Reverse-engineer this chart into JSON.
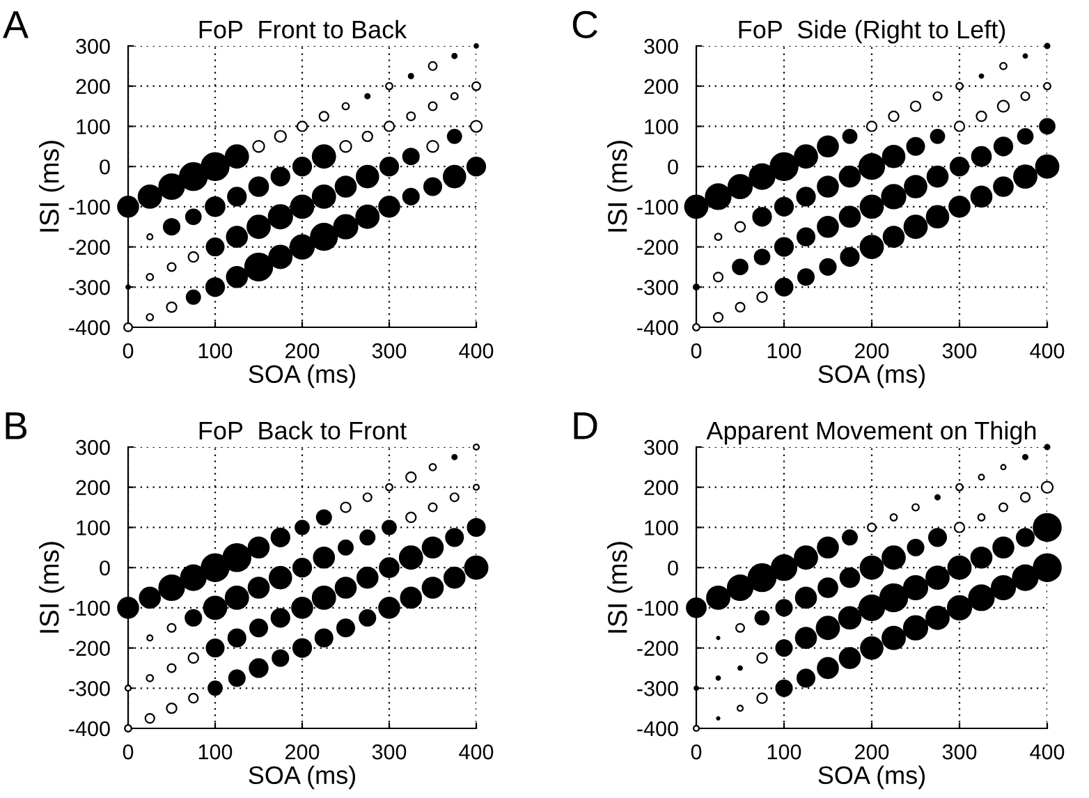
{
  "chart_data": [
    {
      "type": "bubble",
      "title": "FoP  Front to Back",
      "xlabel": "SOA (ms)",
      "ylabel": "ISI (ms)",
      "annotations": [
        "A"
      ],
      "xlim": [
        0,
        400
      ],
      "ylim": [
        -400,
        300
      ],
      "xticks": [
        0,
        100,
        200,
        300,
        400
      ],
      "yticks": [
        -400,
        -300,
        -200,
        -100,
        0,
        100,
        200,
        300
      ],
      "grid": true,
      "series": [
        {
          "x": [
            0,
            25,
            50,
            75,
            100,
            125,
            150,
            175,
            200,
            225,
            250,
            275,
            300,
            325,
            350,
            375,
            400
          ],
          "values": [
            -100,
            -75,
            -50,
            -25,
            0,
            25,
            50,
            75,
            100,
            125,
            150,
            175,
            200,
            225,
            250,
            275,
            300
          ],
          "sizes": [
            0.56,
            0.69,
            0.84,
            1,
            1,
            0.69,
            0.17,
            0.17,
            0.13,
            0.11,
            0.06,
            0.03,
            0.06,
            0.03,
            0.09,
            0.03,
            0.02
          ],
          "colors": [
            "#000000",
            "#000000",
            "#000000",
            "#000000",
            "#000000",
            "#000000",
            "#ffffff",
            "#ffffff",
            "#ffffff",
            "#ffffff",
            "#ffffff",
            "#000000",
            "#ffffff",
            "#000000",
            "#ffffff",
            "#000000",
            "#000000"
          ]
        },
        {
          "x": [
            25,
            50,
            75,
            100,
            125,
            150,
            175,
            200,
            225,
            250,
            275,
            300,
            325,
            350,
            375,
            400
          ],
          "values": [
            -175,
            -150,
            -125,
            -100,
            -75,
            -50,
            -25,
            0,
            25,
            50,
            75,
            100,
            125,
            150,
            175,
            200
          ],
          "sizes": [
            0.04,
            0.34,
            0.3,
            0.49,
            0.44,
            0.49,
            0.44,
            0.44,
            0.69,
            0.17,
            0.13,
            0.13,
            0.09,
            0.09,
            0.06,
            0.09
          ],
          "colors": [
            "#ffffff",
            "#000000",
            "#000000",
            "#000000",
            "#000000",
            "#000000",
            "#000000",
            "#000000",
            "#000000",
            "#ffffff",
            "#ffffff",
            "#ffffff",
            "#ffffff",
            "#ffffff",
            "#ffffff",
            "#ffffff"
          ]
        },
        {
          "x": [
            0,
            25,
            50,
            75,
            100,
            125,
            150,
            175,
            200,
            225,
            250,
            275,
            300,
            325,
            350,
            375,
            400
          ],
          "values": [
            -300,
            -275,
            -250,
            -225,
            -200,
            -175,
            -150,
            -125,
            -100,
            -75,
            -50,
            -25,
            0,
            25,
            50,
            75,
            100
          ],
          "sizes": [
            0.02,
            0.06,
            0.09,
            0.13,
            0.4,
            0.56,
            0.69,
            0.75,
            0.69,
            0.69,
            0.56,
            0.64,
            0.44,
            0.34,
            0.17,
            0.25,
            0.17
          ],
          "colors": [
            "#000000",
            "#ffffff",
            "#ffffff",
            "#ffffff",
            "#000000",
            "#000000",
            "#000000",
            "#000000",
            "#000000",
            "#000000",
            "#000000",
            "#000000",
            "#000000",
            "#000000",
            "#ffffff",
            "#000000",
            "#ffffff"
          ]
        },
        {
          "x": [
            0,
            25,
            50,
            75,
            100,
            125,
            150,
            175,
            200,
            225,
            250,
            275,
            300,
            325,
            350,
            375,
            400
          ],
          "values": [
            -400,
            -375,
            -350,
            -325,
            -300,
            -275,
            -250,
            -225,
            -200,
            -175,
            -150,
            -125,
            -100,
            -75,
            -50,
            -25,
            0
          ],
          "sizes": [
            0.09,
            0.06,
            0.13,
            0.25,
            0.44,
            0.56,
            1,
            0.69,
            0.75,
            0.93,
            0.75,
            0.69,
            0.56,
            0.34,
            0.4,
            0.64,
            0.44
          ],
          "colors": [
            "#ffffff",
            "#ffffff",
            "#ffffff",
            "#000000",
            "#000000",
            "#000000",
            "#000000",
            "#000000",
            "#000000",
            "#000000",
            "#000000",
            "#000000",
            "#000000",
            "#000000",
            "#000000",
            "#000000",
            "#000000"
          ]
        }
      ]
    },
    {
      "type": "bubble",
      "title": "FoP  Side (Right to Left)",
      "xlabel": "SOA (ms)",
      "ylabel": "ISI (ms)",
      "annotations": [
        "C"
      ],
      "xlim": [
        0,
        400
      ],
      "ylim": [
        -400,
        300
      ],
      "xticks": [
        0,
        100,
        200,
        300,
        400
      ],
      "yticks": [
        -400,
        -300,
        -200,
        -100,
        0,
        100,
        200,
        300
      ],
      "grid": true,
      "series": [
        {
          "x": [
            0,
            25,
            50,
            75,
            100,
            125,
            150,
            175,
            200,
            225,
            250,
            275,
            300,
            325,
            350,
            375,
            400
          ],
          "values": [
            -100,
            -75,
            -50,
            -25,
            0,
            25,
            50,
            75,
            100,
            125,
            150,
            175,
            200,
            225,
            250,
            275,
            300
          ],
          "sizes": [
            0.69,
            0.84,
            0.75,
            0.84,
            1,
            0.69,
            0.56,
            0.25,
            0.13,
            0.13,
            0.13,
            0.09,
            0.06,
            0.02,
            0.06,
            0.02,
            0.03
          ],
          "colors": [
            "#000000",
            "#000000",
            "#000000",
            "#000000",
            "#000000",
            "#000000",
            "#000000",
            "#000000",
            "#ffffff",
            "#ffffff",
            "#ffffff",
            "#ffffff",
            "#ffffff",
            "#000000",
            "#ffffff",
            "#000000",
            "#000000"
          ]
        },
        {
          "x": [
            25,
            50,
            75,
            100,
            125,
            150,
            175,
            200,
            225,
            250,
            275,
            300,
            325,
            350,
            375,
            400
          ],
          "values": [
            -175,
            -150,
            -125,
            -100,
            -75,
            -50,
            -25,
            0,
            25,
            50,
            75,
            100,
            125,
            150,
            175,
            200
          ],
          "sizes": [
            0.06,
            0.13,
            0.44,
            0.44,
            0.44,
            0.56,
            0.56,
            0.84,
            0.64,
            0.4,
            0.25,
            0.13,
            0.13,
            0.17,
            0.09,
            0.06
          ],
          "colors": [
            "#ffffff",
            "#ffffff",
            "#000000",
            "#000000",
            "#000000",
            "#000000",
            "#000000",
            "#000000",
            "#000000",
            "#000000",
            "#000000",
            "#ffffff",
            "#ffffff",
            "#ffffff",
            "#ffffff",
            "#ffffff"
          ]
        },
        {
          "x": [
            0,
            25,
            50,
            75,
            100,
            125,
            150,
            175,
            200,
            225,
            250,
            275,
            300,
            325,
            350,
            375,
            400
          ],
          "values": [
            -300,
            -275,
            -250,
            -225,
            -200,
            -175,
            -150,
            -125,
            -100,
            -75,
            -50,
            -25,
            0,
            25,
            50,
            75,
            100
          ],
          "sizes": [
            0.04,
            0.11,
            0.3,
            0.3,
            0.44,
            0.4,
            0.56,
            0.56,
            0.69,
            0.75,
            0.64,
            0.56,
            0.44,
            0.49,
            0.44,
            0.3,
            0.3
          ],
          "colors": [
            "#000000",
            "#ffffff",
            "#000000",
            "#000000",
            "#000000",
            "#000000",
            "#000000",
            "#000000",
            "#000000",
            "#000000",
            "#000000",
            "#000000",
            "#000000",
            "#000000",
            "#000000",
            "#000000",
            "#000000"
          ]
        },
        {
          "x": [
            0,
            25,
            50,
            75,
            100,
            125,
            150,
            175,
            200,
            225,
            250,
            275,
            300,
            325,
            350,
            375,
            400
          ],
          "values": [
            -400,
            -375,
            -350,
            -325,
            -300,
            -275,
            -250,
            -225,
            -200,
            -175,
            -150,
            -125,
            -100,
            -75,
            -50,
            -25,
            0
          ],
          "sizes": [
            0.06,
            0.11,
            0.11,
            0.13,
            0.4,
            0.34,
            0.34,
            0.44,
            0.69,
            0.56,
            0.69,
            0.64,
            0.56,
            0.56,
            0.49,
            0.69,
            0.69
          ],
          "colors": [
            "#ffffff",
            "#ffffff",
            "#ffffff",
            "#ffffff",
            "#000000",
            "#000000",
            "#000000",
            "#000000",
            "#000000",
            "#000000",
            "#000000",
            "#000000",
            "#000000",
            "#000000",
            "#000000",
            "#000000",
            "#000000"
          ]
        }
      ]
    },
    {
      "type": "bubble",
      "title": "FoP  Back to Front",
      "xlabel": "SOA (ms)",
      "ylabel": "ISI (ms)",
      "annotations": [
        "B"
      ],
      "xlim": [
        0,
        400
      ],
      "ylim": [
        -400,
        300
      ],
      "xticks": [
        0,
        100,
        200,
        300,
        400
      ],
      "yticks": [
        -400,
        -300,
        -200,
        -100,
        0,
        100,
        200,
        300
      ],
      "grid": true,
      "series": [
        {
          "x": [
            0,
            25,
            50,
            75,
            100,
            125,
            150,
            175,
            200,
            225,
            250,
            275,
            300,
            325,
            350,
            375,
            400
          ],
          "values": [
            -100,
            -75,
            -50,
            -25,
            0,
            25,
            50,
            75,
            100,
            125,
            150,
            175,
            200,
            225,
            250,
            275,
            300
          ],
          "sizes": [
            0.56,
            0.56,
            0.84,
            0.84,
            1,
            1,
            0.56,
            0.44,
            0.25,
            0.28,
            0.13,
            0.09,
            0.06,
            0.13,
            0.06,
            0.03,
            0.04
          ],
          "colors": [
            "#000000",
            "#000000",
            "#000000",
            "#000000",
            "#000000",
            "#000000",
            "#000000",
            "#000000",
            "#000000",
            "#000000",
            "#ffffff",
            "#ffffff",
            "#ffffff",
            "#ffffff",
            "#ffffff",
            "#000000",
            "#ffffff"
          ]
        },
        {
          "x": [
            25,
            50,
            75,
            100,
            125,
            150,
            175,
            200,
            225,
            250,
            275,
            300,
            325,
            350,
            375,
            400
          ],
          "values": [
            -175,
            -150,
            -125,
            -100,
            -75,
            -50,
            -25,
            0,
            25,
            50,
            75,
            100,
            125,
            150,
            175,
            200
          ],
          "sizes": [
            0.04,
            0.09,
            0.34,
            0.69,
            0.69,
            0.56,
            0.64,
            0.44,
            0.56,
            0.28,
            0.28,
            0.25,
            0.13,
            0.09,
            0.09,
            0.04
          ],
          "colors": [
            "#ffffff",
            "#ffffff",
            "#000000",
            "#000000",
            "#000000",
            "#000000",
            "#000000",
            "#000000",
            "#000000",
            "#000000",
            "#000000",
            "#000000",
            "#ffffff",
            "#ffffff",
            "#ffffff",
            "#ffffff"
          ]
        },
        {
          "x": [
            0,
            25,
            50,
            75,
            100,
            125,
            150,
            175,
            200,
            225,
            250,
            275,
            300,
            325,
            350,
            375,
            400
          ],
          "values": [
            -300,
            -275,
            -250,
            -225,
            -200,
            -175,
            -150,
            -125,
            -100,
            -75,
            -50,
            -25,
            0,
            25,
            50,
            75,
            100
          ],
          "sizes": [
            0.04,
            0.06,
            0.09,
            0.13,
            0.4,
            0.4,
            0.4,
            0.44,
            0.56,
            0.69,
            0.56,
            0.56,
            0.49,
            0.69,
            0.56,
            0.4,
            0.4
          ],
          "colors": [
            "#ffffff",
            "#ffffff",
            "#ffffff",
            "#ffffff",
            "#000000",
            "#000000",
            "#000000",
            "#000000",
            "#000000",
            "#000000",
            "#000000",
            "#000000",
            "#000000",
            "#000000",
            "#000000",
            "#000000",
            "#000000"
          ]
        },
        {
          "x": [
            0,
            25,
            50,
            75,
            100,
            125,
            150,
            175,
            200,
            225,
            250,
            275,
            300,
            325,
            350,
            375,
            400
          ],
          "values": [
            -400,
            -375,
            -350,
            -325,
            -300,
            -275,
            -250,
            -225,
            -200,
            -175,
            -150,
            -125,
            -100,
            -75,
            -50,
            -25,
            0
          ],
          "sizes": [
            0.06,
            0.11,
            0.13,
            0.11,
            0.25,
            0.34,
            0.44,
            0.34,
            0.44,
            0.4,
            0.4,
            0.34,
            0.56,
            0.56,
            0.56,
            0.56,
            0.69
          ],
          "colors": [
            "#ffffff",
            "#ffffff",
            "#ffffff",
            "#ffffff",
            "#000000",
            "#000000",
            "#000000",
            "#000000",
            "#000000",
            "#000000",
            "#000000",
            "#000000",
            "#000000",
            "#000000",
            "#000000",
            "#000000",
            "#000000"
          ]
        }
      ]
    },
    {
      "type": "bubble",
      "title": "Apparent Movement on Thigh",
      "xlabel": "SOA (ms)",
      "ylabel": "ISI (ms)",
      "annotations": [
        "D"
      ],
      "xlim": [
        0,
        400
      ],
      "ylim": [
        -400,
        300
      ],
      "xticks": [
        0,
        100,
        200,
        300,
        400
      ],
      "yticks": [
        -400,
        -300,
        -200,
        -100,
        0,
        100,
        200,
        300
      ],
      "grid": true,
      "series": [
        {
          "x": [
            0,
            25,
            50,
            75,
            100,
            125,
            150,
            175,
            200,
            225,
            250,
            275,
            300,
            325,
            350,
            375,
            400
          ],
          "values": [
            -100,
            -75,
            -50,
            -25,
            0,
            25,
            50,
            75,
            100,
            125,
            150,
            175,
            200,
            225,
            250,
            275,
            300
          ],
          "sizes": [
            0.49,
            0.69,
            0.84,
            1,
            0.84,
            0.69,
            0.56,
            0.28,
            0.09,
            0.06,
            0.06,
            0.03,
            0.06,
            0.04,
            0.03,
            0.03,
            0.03
          ],
          "colors": [
            "#000000",
            "#000000",
            "#000000",
            "#000000",
            "#000000",
            "#000000",
            "#000000",
            "#000000",
            "#ffffff",
            "#ffffff",
            "#ffffff",
            "#000000",
            "#ffffff",
            "#ffffff",
            "#ffffff",
            "#000000",
            "#000000"
          ]
        },
        {
          "x": [
            25,
            50,
            75,
            100,
            125,
            150,
            175,
            200,
            225,
            250,
            275,
            300,
            325,
            350,
            375,
            400
          ],
          "values": [
            -175,
            -150,
            -125,
            -100,
            -75,
            -50,
            -25,
            0,
            25,
            50,
            75,
            100,
            125,
            150,
            175,
            200
          ],
          "sizes": [
            0.01,
            0.09,
            0.25,
            0.34,
            0.56,
            0.49,
            0.49,
            0.69,
            0.69,
            0.34,
            0.4,
            0.13,
            0.06,
            0.09,
            0.11,
            0.17
          ],
          "colors": [
            "#000000",
            "#ffffff",
            "#000000",
            "#000000",
            "#000000",
            "#000000",
            "#000000",
            "#000000",
            "#000000",
            "#000000",
            "#000000",
            "#ffffff",
            "#ffffff",
            "#ffffff",
            "#ffffff",
            "#ffffff"
          ]
        },
        {
          "x": [
            0,
            25,
            50,
            75,
            100,
            125,
            150,
            175,
            200,
            225,
            250,
            275,
            300,
            325,
            350,
            375,
            400
          ],
          "values": [
            -300,
            -275,
            -250,
            -225,
            -200,
            -175,
            -150,
            -125,
            -100,
            -75,
            -50,
            -25,
            0,
            25,
            50,
            75,
            100
          ],
          "sizes": [
            0.02,
            0.02,
            0.02,
            0.13,
            0.34,
            0.56,
            0.69,
            0.64,
            0.84,
            1,
            0.75,
            0.69,
            0.69,
            0.56,
            0.56,
            0.4,
            1
          ],
          "colors": [
            "#000000",
            "#000000",
            "#000000",
            "#ffffff",
            "#000000",
            "#000000",
            "#000000",
            "#000000",
            "#000000",
            "#000000",
            "#000000",
            "#000000",
            "#000000",
            "#000000",
            "#000000",
            "#000000",
            "#000000"
          ]
        },
        {
          "x": [
            0,
            25,
            50,
            75,
            100,
            125,
            150,
            175,
            200,
            225,
            250,
            275,
            300,
            325,
            350,
            375,
            400
          ],
          "values": [
            -400,
            -375,
            -350,
            -325,
            -300,
            -275,
            -250,
            -225,
            -200,
            -175,
            -150,
            -125,
            -100,
            -75,
            -50,
            -25,
            0
          ],
          "sizes": [
            0.04,
            0.01,
            0.04,
            0.13,
            0.34,
            0.4,
            0.56,
            0.56,
            0.64,
            0.69,
            0.75,
            0.69,
            0.75,
            0.84,
            0.75,
            0.84,
            1
          ],
          "colors": [
            "#ffffff",
            "#000000",
            "#ffffff",
            "#ffffff",
            "#000000",
            "#000000",
            "#000000",
            "#000000",
            "#000000",
            "#000000",
            "#000000",
            "#000000",
            "#000000",
            "#000000",
            "#000000",
            "#000000",
            "#000000"
          ]
        }
      ]
    }
  ]
}
